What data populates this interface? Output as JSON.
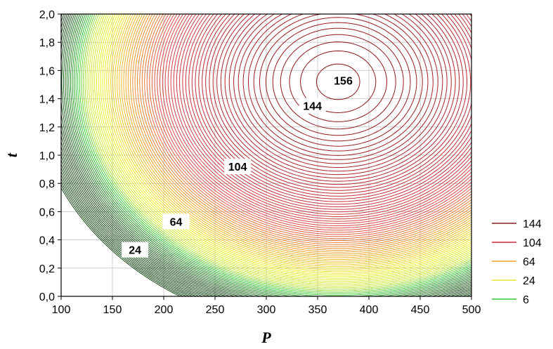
{
  "chart_data": {
    "type": "contour",
    "xlabel": "P",
    "ylabel": "t",
    "xlim": [
      100,
      500
    ],
    "ylim": [
      0.0,
      2.0
    ],
    "x_ticks": [
      "100",
      "150",
      "200",
      "250",
      "300",
      "350",
      "400",
      "450",
      "500"
    ],
    "y_ticks": [
      "0,0",
      "0,2",
      "0,4",
      "0,6",
      "0,8",
      "1,0",
      "1,2",
      "1,4",
      "1,6",
      "1,8",
      "2,0"
    ],
    "grid": true,
    "peak": {
      "P": 370,
      "t": 1.52,
      "value": 157
    },
    "contour_step": 2,
    "contour_labels": [
      {
        "text": "156",
        "P": 375,
        "t": 1.52
      },
      {
        "text": "144",
        "P": 345,
        "t": 1.34
      },
      {
        "text": "104",
        "P": 272,
        "t": 0.91
      },
      {
        "text": "64",
        "P": 212,
        "t": 0.52
      },
      {
        "text": "24",
        "P": 172,
        "t": 0.32
      }
    ],
    "legend": {
      "placement": "right",
      "entries": [
        {
          "label": "144",
          "color": "#8b1a1a"
        },
        {
          "label": "104",
          "color": "#c8283c"
        },
        {
          "label": "64",
          "color": "#f0a028"
        },
        {
          "label": "24",
          "color": "#e6e628"
        },
        {
          "label": "6",
          "color": "#32c832"
        }
      ]
    }
  }
}
